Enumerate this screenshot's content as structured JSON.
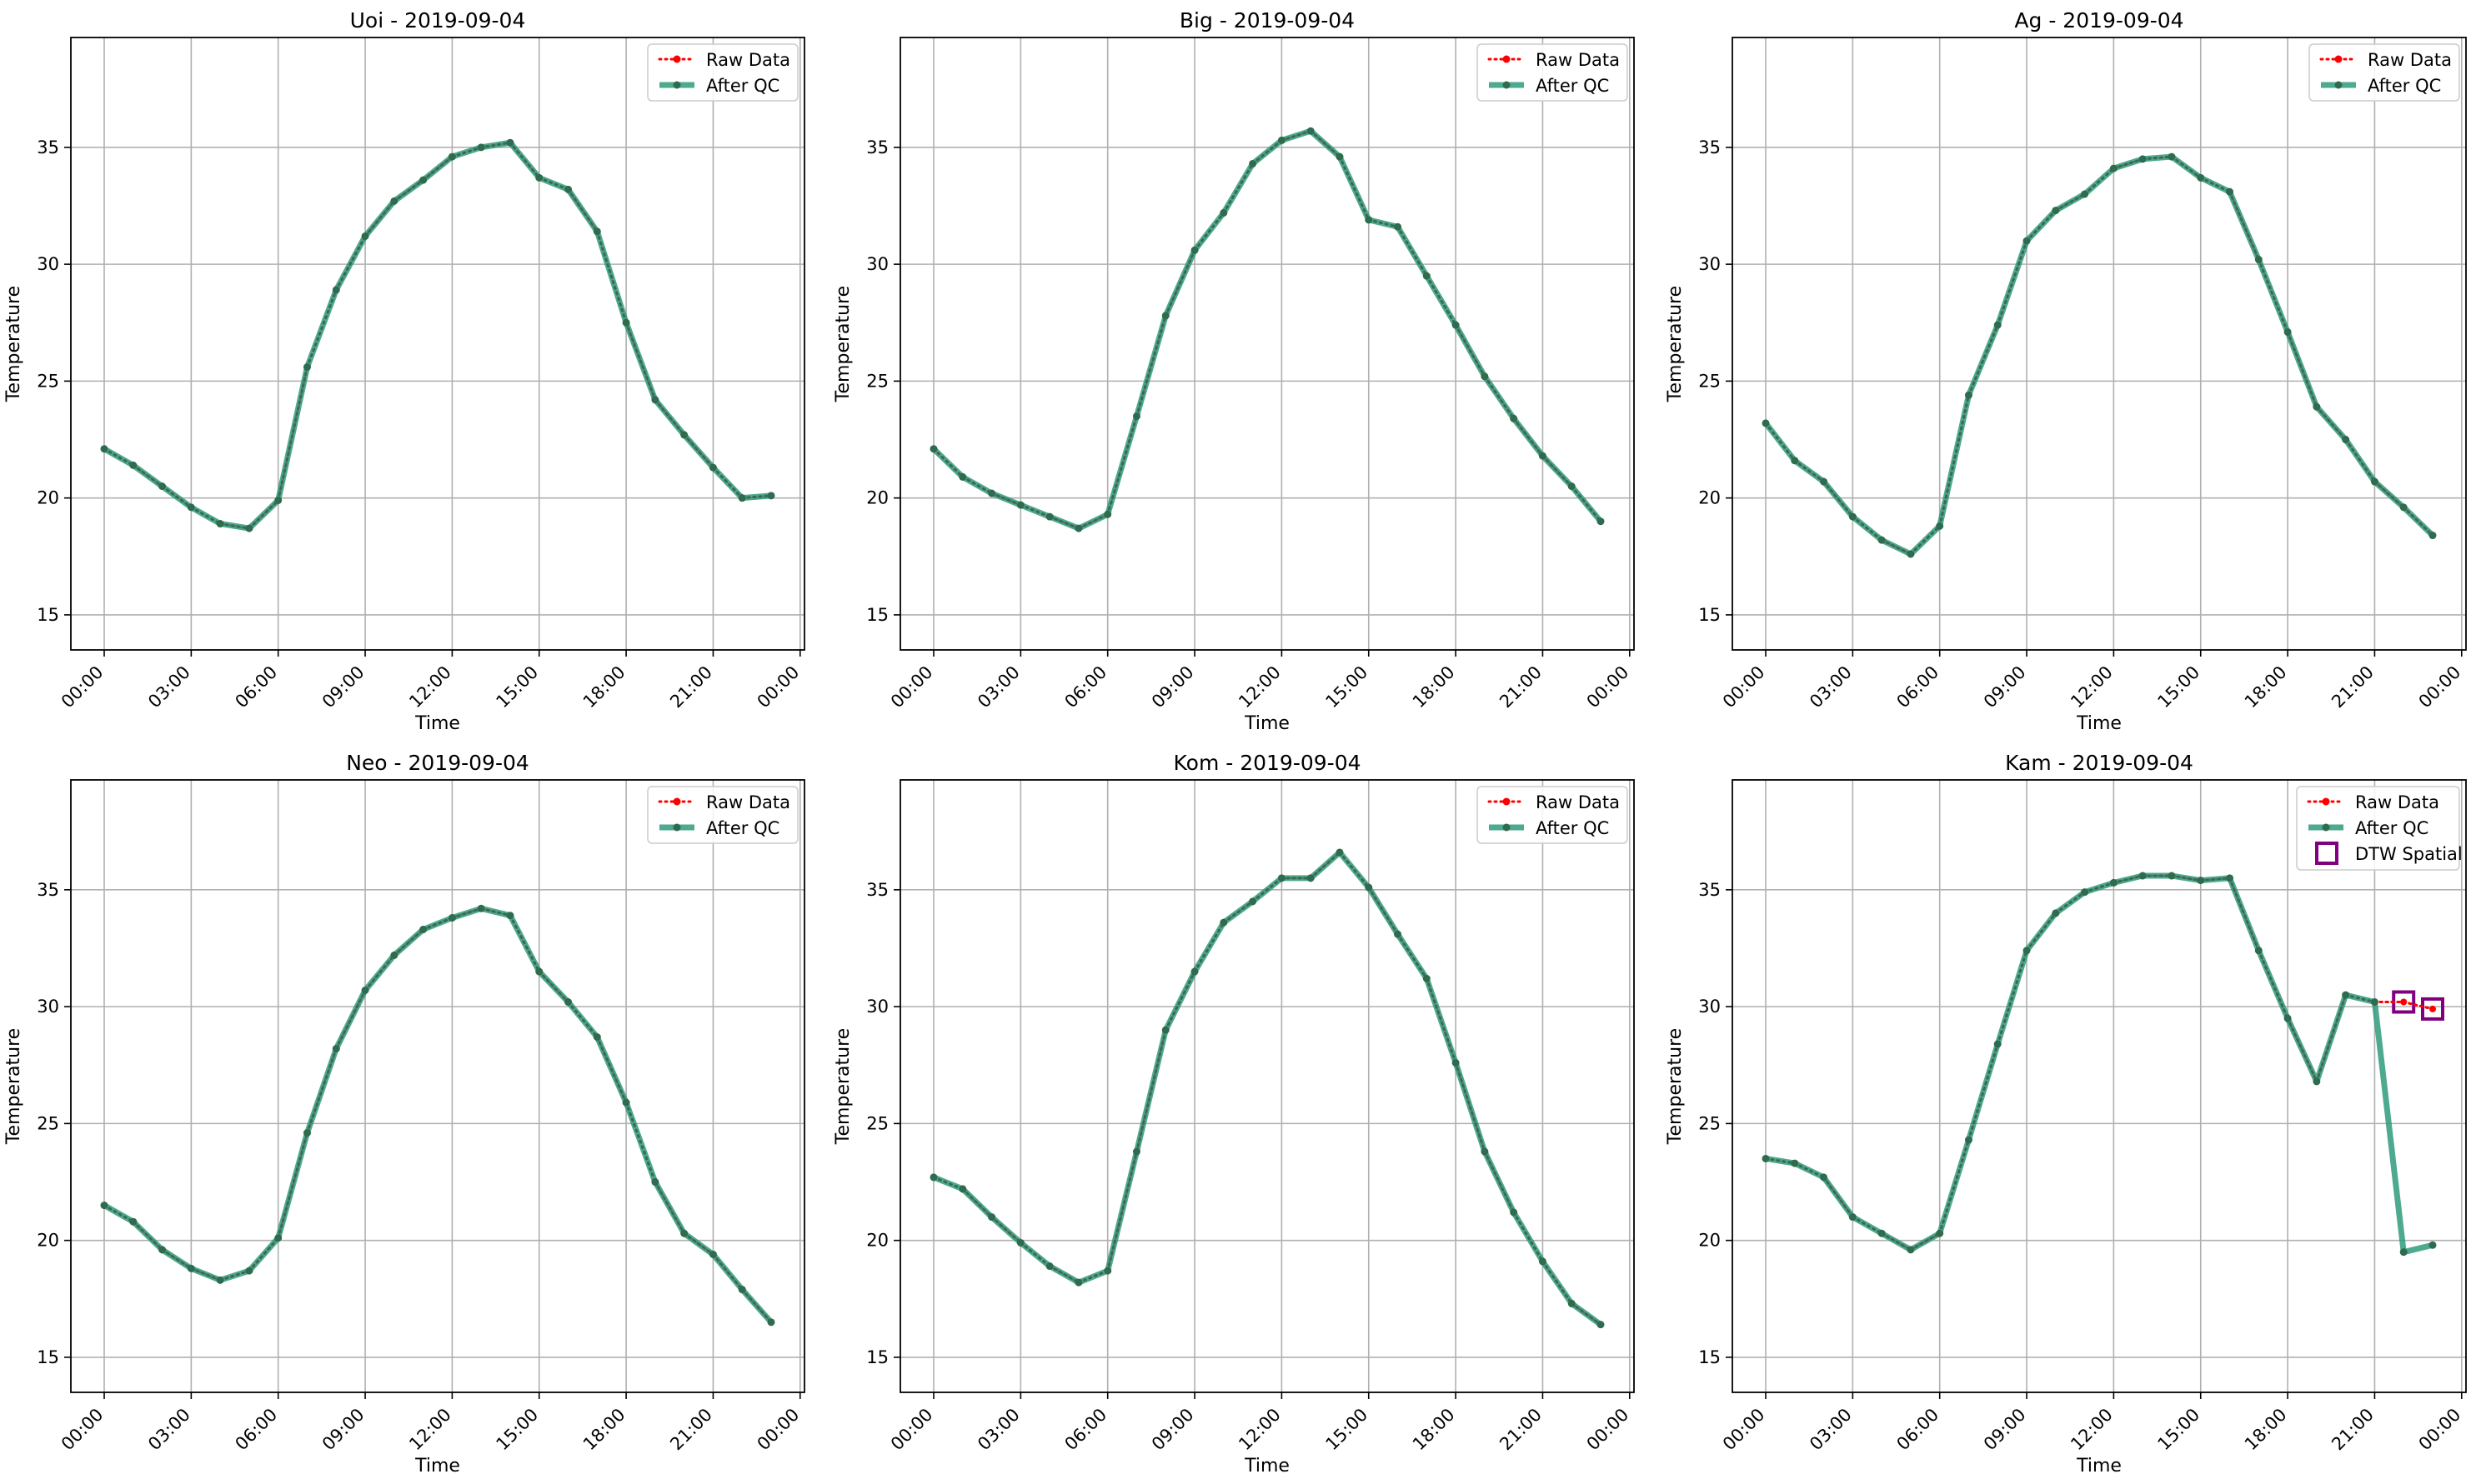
{
  "colors": {
    "raw": "#ff0000",
    "qc": "#2e9b7b",
    "marker": "#2f6b4e",
    "dtw": "#800080",
    "grid": "#b0b0b0"
  },
  "chart_data": [
    {
      "type": "line",
      "title": "Uoi - 2019-09-04",
      "xlabel": "Time",
      "ylabel": "Temperature",
      "xticks": [
        "00:00",
        "03:00",
        "06:00",
        "09:00",
        "12:00",
        "15:00",
        "18:00",
        "21:00",
        "00:00"
      ],
      "yticks": [
        15,
        20,
        25,
        30,
        35
      ],
      "xlim_hours": [
        -1.15,
        24.15
      ],
      "ylim": [
        13.5,
        39.7
      ],
      "grid": true,
      "legend_position": "top-right",
      "x_hours": [
        0,
        1,
        2,
        3,
        4,
        5,
        6,
        7,
        8,
        9,
        10,
        11,
        12,
        13,
        14,
        15,
        16,
        17,
        18,
        19,
        20,
        21,
        22,
        23
      ],
      "series": [
        {
          "name": "Raw Data",
          "style": "dotted-red-markers",
          "values": [
            22.1,
            21.4,
            20.5,
            19.6,
            18.9,
            18.7,
            19.9,
            25.6,
            28.9,
            31.2,
            32.7,
            33.6,
            34.6,
            35.0,
            35.2,
            33.7,
            33.2,
            31.4,
            27.5,
            24.2,
            22.7,
            21.3,
            20.0,
            20.1
          ]
        },
        {
          "name": "After QC",
          "style": "solid-teal-markers",
          "values": [
            22.1,
            21.4,
            20.5,
            19.6,
            18.9,
            18.7,
            19.9,
            25.6,
            28.9,
            31.2,
            32.7,
            33.6,
            34.6,
            35.0,
            35.2,
            33.7,
            33.2,
            31.4,
            27.5,
            24.2,
            22.7,
            21.3,
            20.0,
            20.1
          ]
        }
      ]
    },
    {
      "type": "line",
      "title": "Big - 2019-09-04",
      "xlabel": "Time",
      "ylabel": "Temperature",
      "xticks": [
        "00:00",
        "03:00",
        "06:00",
        "09:00",
        "12:00",
        "15:00",
        "18:00",
        "21:00",
        "00:00"
      ],
      "yticks": [
        15,
        20,
        25,
        30,
        35
      ],
      "xlim_hours": [
        -1.15,
        24.15
      ],
      "ylim": [
        13.5,
        39.7
      ],
      "grid": true,
      "legend_position": "top-right",
      "x_hours": [
        0,
        1,
        2,
        3,
        4,
        5,
        6,
        7,
        8,
        9,
        10,
        11,
        12,
        13,
        14,
        15,
        16,
        17,
        18,
        19,
        20,
        21,
        22,
        23
      ],
      "series": [
        {
          "name": "Raw Data",
          "style": "dotted-red-markers",
          "values": [
            22.1,
            20.9,
            20.2,
            19.7,
            19.2,
            18.7,
            19.3,
            23.5,
            27.8,
            30.6,
            32.2,
            34.3,
            35.3,
            35.7,
            34.6,
            31.9,
            31.6,
            29.5,
            27.4,
            25.2,
            23.4,
            21.8,
            20.5,
            19.0
          ]
        },
        {
          "name": "After QC",
          "style": "solid-teal-markers",
          "values": [
            22.1,
            20.9,
            20.2,
            19.7,
            19.2,
            18.7,
            19.3,
            23.5,
            27.8,
            30.6,
            32.2,
            34.3,
            35.3,
            35.7,
            34.6,
            31.9,
            31.6,
            29.5,
            27.4,
            25.2,
            23.4,
            21.8,
            20.5,
            19.0
          ]
        }
      ]
    },
    {
      "type": "line",
      "title": "Ag - 2019-09-04",
      "xlabel": "Time",
      "ylabel": "Temperature",
      "xticks": [
        "00:00",
        "03:00",
        "06:00",
        "09:00",
        "12:00",
        "15:00",
        "18:00",
        "21:00",
        "00:00"
      ],
      "yticks": [
        15,
        20,
        25,
        30,
        35
      ],
      "xlim_hours": [
        -1.15,
        24.15
      ],
      "ylim": [
        13.5,
        39.7
      ],
      "grid": true,
      "legend_position": "top-right",
      "x_hours": [
        0,
        1,
        2,
        3,
        4,
        5,
        6,
        7,
        8,
        9,
        10,
        11,
        12,
        13,
        14,
        15,
        16,
        17,
        18,
        19,
        20,
        21,
        22,
        23
      ],
      "series": [
        {
          "name": "Raw Data",
          "style": "dotted-red-markers",
          "values": [
            23.2,
            21.6,
            20.7,
            19.2,
            18.2,
            17.6,
            18.8,
            24.4,
            27.4,
            31.0,
            32.3,
            33.0,
            34.1,
            34.5,
            34.6,
            33.7,
            33.1,
            30.2,
            27.1,
            23.9,
            22.5,
            20.7,
            19.6,
            18.4
          ]
        },
        {
          "name": "After QC",
          "style": "solid-teal-markers",
          "values": [
            23.2,
            21.6,
            20.7,
            19.2,
            18.2,
            17.6,
            18.8,
            24.4,
            27.4,
            31.0,
            32.3,
            33.0,
            34.1,
            34.5,
            34.6,
            33.7,
            33.1,
            30.2,
            27.1,
            23.9,
            22.5,
            20.7,
            19.6,
            18.4
          ]
        }
      ]
    },
    {
      "type": "line",
      "title": "Neo - 2019-09-04",
      "xlabel": "Time",
      "ylabel": "Temperature",
      "xticks": [
        "00:00",
        "03:00",
        "06:00",
        "09:00",
        "12:00",
        "15:00",
        "18:00",
        "21:00",
        "00:00"
      ],
      "yticks": [
        15,
        20,
        25,
        30,
        35
      ],
      "xlim_hours": [
        -1.15,
        24.15
      ],
      "ylim": [
        13.5,
        39.7
      ],
      "grid": true,
      "legend_position": "top-right",
      "x_hours": [
        0,
        1,
        2,
        3,
        4,
        5,
        6,
        7,
        8,
        9,
        10,
        11,
        12,
        13,
        14,
        15,
        16,
        17,
        18,
        19,
        20,
        21,
        22,
        23
      ],
      "series": [
        {
          "name": "Raw Data",
          "style": "dotted-red-markers",
          "values": [
            21.5,
            20.8,
            19.6,
            18.8,
            18.3,
            18.7,
            20.1,
            24.6,
            28.2,
            30.7,
            32.2,
            33.3,
            33.8,
            34.2,
            33.9,
            31.5,
            30.2,
            28.7,
            25.9,
            22.5,
            20.3,
            19.4,
            17.9,
            16.5
          ]
        },
        {
          "name": "After QC",
          "style": "solid-teal-markers",
          "values": [
            21.5,
            20.8,
            19.6,
            18.8,
            18.3,
            18.7,
            20.1,
            24.6,
            28.2,
            30.7,
            32.2,
            33.3,
            33.8,
            34.2,
            33.9,
            31.5,
            30.2,
            28.7,
            25.9,
            22.5,
            20.3,
            19.4,
            17.9,
            16.5
          ]
        }
      ]
    },
    {
      "type": "line",
      "title": "Kom - 2019-09-04",
      "xlabel": "Time",
      "ylabel": "Temperature",
      "xticks": [
        "00:00",
        "03:00",
        "06:00",
        "09:00",
        "12:00",
        "15:00",
        "18:00",
        "21:00",
        "00:00"
      ],
      "yticks": [
        15,
        20,
        25,
        30,
        35
      ],
      "xlim_hours": [
        -1.15,
        24.15
      ],
      "ylim": [
        13.5,
        39.7
      ],
      "grid": true,
      "legend_position": "top-right",
      "x_hours": [
        0,
        1,
        2,
        3,
        4,
        5,
        6,
        7,
        8,
        9,
        10,
        11,
        12,
        13,
        14,
        15,
        16,
        17,
        18,
        19,
        20,
        21,
        22,
        23
      ],
      "series": [
        {
          "name": "Raw Data",
          "style": "dotted-red-markers",
          "values": [
            22.7,
            22.2,
            21.0,
            19.9,
            18.9,
            18.2,
            18.7,
            23.8,
            29.0,
            31.5,
            33.6,
            34.5,
            35.5,
            35.5,
            36.6,
            35.1,
            33.1,
            31.2,
            27.6,
            23.8,
            21.2,
            19.1,
            17.3,
            16.4
          ]
        },
        {
          "name": "After QC",
          "style": "solid-teal-markers",
          "values": [
            22.7,
            22.2,
            21.0,
            19.9,
            18.9,
            18.2,
            18.7,
            23.8,
            29.0,
            31.5,
            33.6,
            34.5,
            35.5,
            35.5,
            36.6,
            35.1,
            33.1,
            31.2,
            27.6,
            23.8,
            21.2,
            19.1,
            17.3,
            16.4
          ]
        }
      ]
    },
    {
      "type": "line",
      "title": "Kam - 2019-09-04",
      "xlabel": "Time",
      "ylabel": "Temperature",
      "xticks": [
        "00:00",
        "03:00",
        "06:00",
        "09:00",
        "12:00",
        "15:00",
        "18:00",
        "21:00",
        "00:00"
      ],
      "yticks": [
        15,
        20,
        25,
        30,
        35
      ],
      "xlim_hours": [
        -1.15,
        24.15
      ],
      "ylim": [
        13.5,
        39.7
      ],
      "grid": true,
      "legend_position": "top-right",
      "x_hours": [
        0,
        1,
        2,
        3,
        4,
        5,
        6,
        7,
        8,
        9,
        10,
        11,
        12,
        13,
        14,
        15,
        16,
        17,
        18,
        19,
        20,
        21,
        22,
        23
      ],
      "series": [
        {
          "name": "Raw Data",
          "style": "dotted-red-markers",
          "values": [
            23.5,
            23.3,
            22.7,
            21.0,
            20.3,
            19.6,
            20.3,
            24.3,
            28.4,
            32.4,
            34.0,
            34.9,
            35.3,
            35.6,
            35.6,
            35.4,
            35.5,
            32.4,
            29.5,
            26.8,
            30.5,
            30.2,
            30.2,
            29.9
          ]
        },
        {
          "name": "After QC",
          "style": "solid-teal-markers",
          "values": [
            23.5,
            23.3,
            22.7,
            21.0,
            20.3,
            19.6,
            20.3,
            24.3,
            28.4,
            32.4,
            34.0,
            34.9,
            35.3,
            35.6,
            35.6,
            35.4,
            35.5,
            32.4,
            29.5,
            26.8,
            30.5,
            30.2,
            19.5,
            19.8
          ]
        },
        {
          "name": "DTW Spatial",
          "style": "purple-square-markers",
          "x_hours": [
            22,
            23
          ],
          "values": [
            30.2,
            29.9
          ]
        }
      ]
    }
  ]
}
